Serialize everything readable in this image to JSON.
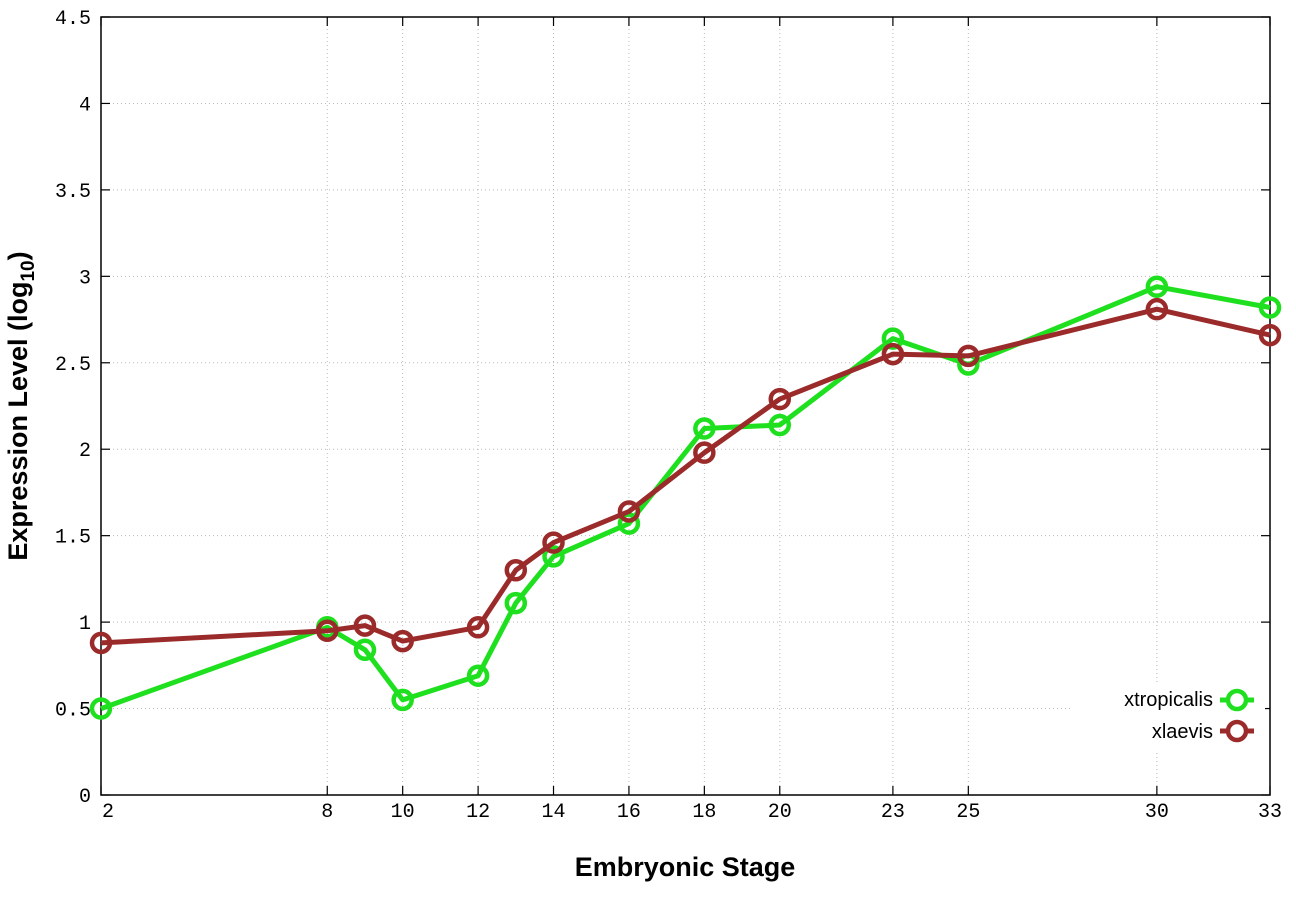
{
  "chart_data": {
    "type": "line",
    "xlabel": "Embryonic Stage",
    "ylabel": "Expression Level (log",
    "ylabel_subscript": "10",
    "ylabel_close": ")",
    "xlim": [
      2,
      33
    ],
    "ylim": [
      0,
      4.5
    ],
    "x_ticks": [
      "2",
      "8",
      "10",
      "12",
      "14",
      "16",
      "18",
      "20",
      "23",
      "25",
      "30",
      "33"
    ],
    "x_tick_positions": [
      2,
      8,
      10,
      12,
      14,
      16,
      18,
      20,
      23,
      25,
      30,
      33
    ],
    "y_ticks": [
      "0",
      "0.5",
      "1",
      "1.5",
      "2",
      "2.5",
      "3",
      "3.5",
      "4",
      "4.5"
    ],
    "y_tick_values": [
      0,
      0.5,
      1,
      1.5,
      2,
      2.5,
      3,
      3.5,
      4,
      4.5
    ],
    "grid": true,
    "legend_position": "bottom-right",
    "series": [
      {
        "name": "xtropicalis",
        "color": "#1ee01e",
        "x": [
          2,
          8,
          9,
          10,
          12,
          13,
          14,
          16,
          18,
          20,
          23,
          25,
          30,
          33
        ],
        "y": [
          0.5,
          0.97,
          0.84,
          0.55,
          0.69,
          1.11,
          1.38,
          1.57,
          2.12,
          2.14,
          2.64,
          2.49,
          2.94,
          2.82
        ]
      },
      {
        "name": "xlaevis",
        "color": "#9b2b2b",
        "x": [
          2,
          8,
          9,
          10,
          12,
          13,
          14,
          16,
          18,
          20,
          23,
          25,
          30,
          33
        ],
        "y": [
          0.88,
          0.95,
          0.98,
          0.89,
          0.97,
          1.3,
          1.46,
          1.64,
          1.98,
          2.29,
          2.55,
          2.54,
          2.81,
          2.66
        ]
      }
    ]
  }
}
